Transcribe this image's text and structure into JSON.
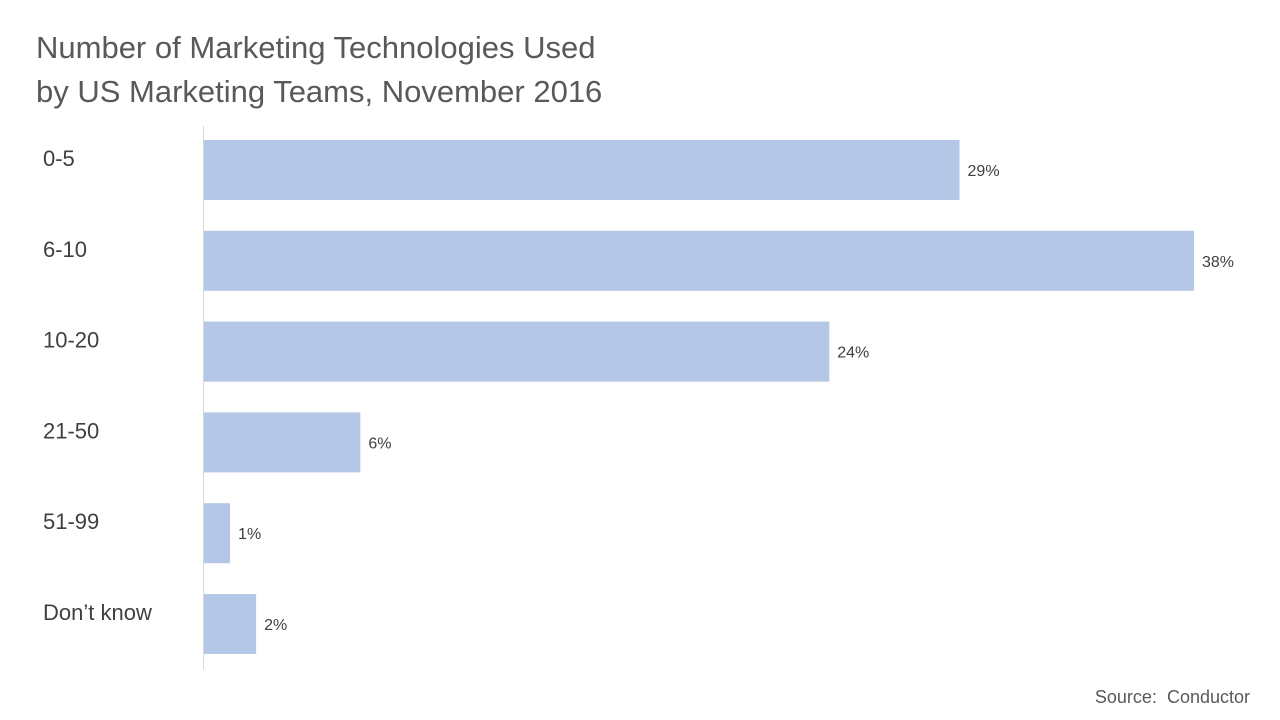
{
  "chart_data": {
    "type": "bar",
    "orientation": "horizontal",
    "title": [
      "Number of Marketing Technologies Used",
      "by US Marketing Teams, November 2016"
    ],
    "categories": [
      "0-5",
      "6-10",
      "10-20",
      "21-50",
      "51-99",
      "Don’t know"
    ],
    "values": [
      29,
      38,
      24,
      6,
      1,
      2
    ],
    "data_labels": [
      "29%",
      "38%",
      "24%",
      "6%",
      "1%",
      "2%"
    ],
    "xlim": [
      0,
      38
    ],
    "grid": false,
    "legend": "none",
    "bar_color": "#b4c7e7",
    "axis_color": "#d9d9d9"
  },
  "source": "Source:  Conductor"
}
